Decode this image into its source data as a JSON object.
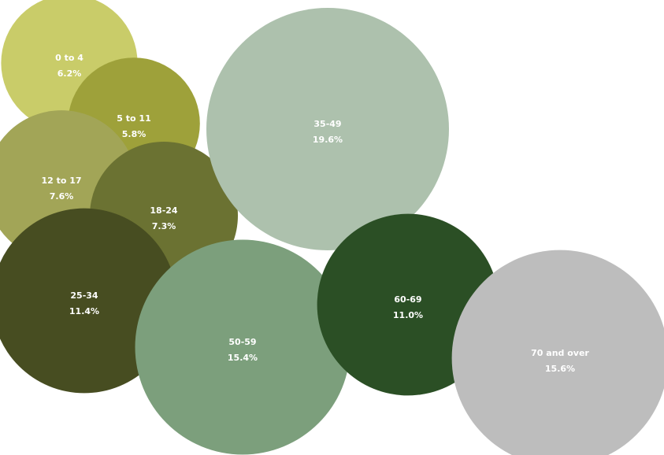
{
  "chart_data": {
    "type": "bubble",
    "title": "",
    "legend": "none",
    "series": [
      {
        "label": "0 to 4",
        "value": 6.2,
        "display": "6.2%",
        "color": "#c9cc69"
      },
      {
        "label": "5 to 11",
        "value": 5.8,
        "display": "5.8%",
        "color": "#9ea13a"
      },
      {
        "label": "12 to 17",
        "value": 7.6,
        "display": "7.6%",
        "color": "#a2a557"
      },
      {
        "label": "18-24",
        "value": 7.3,
        "display": "7.3%",
        "color": "#6b7232"
      },
      {
        "label": "25-34",
        "value": 11.4,
        "display": "11.4%",
        "color": "#474d21"
      },
      {
        "label": "35-49",
        "value": 19.6,
        "display": "19.6%",
        "color": "#adc1ad"
      },
      {
        "label": "50-59",
        "value": 15.4,
        "display": "15.4%",
        "color": "#7c9f7c"
      },
      {
        "label": "60-69",
        "value": 11.0,
        "display": "11.0%",
        "color": "#2b4f25"
      },
      {
        "label": "70 and over",
        "value": 15.6,
        "display": "15.6%",
        "color": "#bdbdbd"
      }
    ]
  }
}
